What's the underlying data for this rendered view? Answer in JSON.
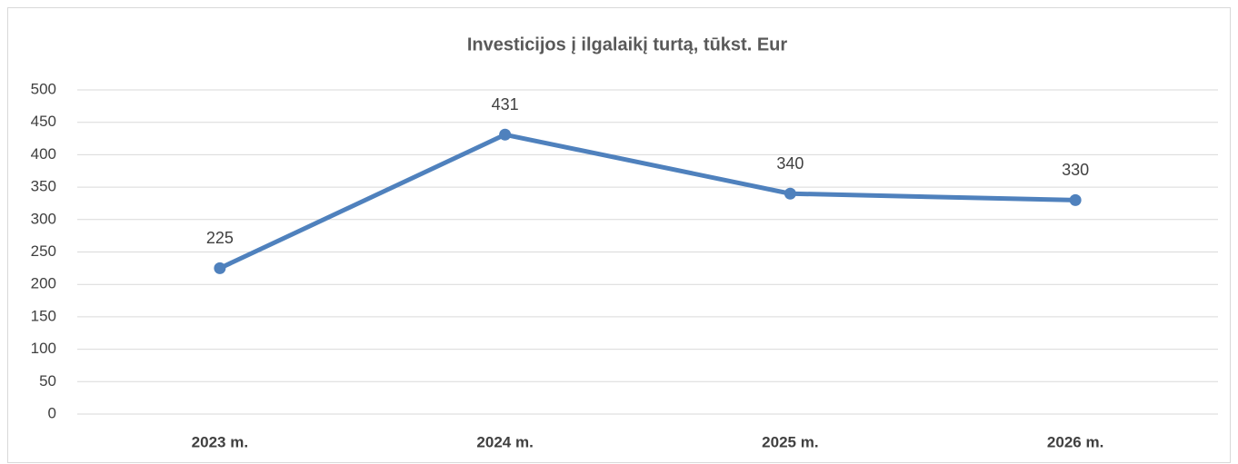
{
  "chart_data": {
    "type": "line",
    "title": "Investicijos į ilgalaikį turtą, tūkst. Eur",
    "categories": [
      "2023 m.",
      "2024 m.",
      "2025 m.",
      "2026 m."
    ],
    "values": [
      225,
      431,
      340,
      330
    ],
    "color": "#4f81bd",
    "ylim": [
      0,
      500
    ],
    "yticks": [
      0,
      50,
      100,
      150,
      200,
      250,
      300,
      350,
      400,
      450,
      500
    ],
    "grid": true
  }
}
